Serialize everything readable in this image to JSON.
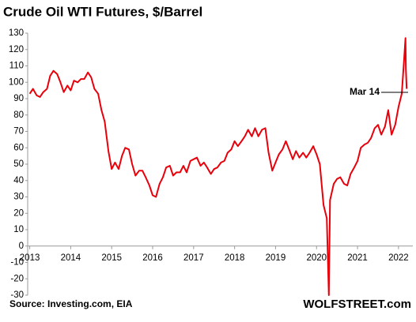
{
  "chart_data": {
    "type": "line",
    "title": "Crude Oil WTI Futures, $/Barrel",
    "annotation": "Mar 14",
    "source": "Source: Investing.com,   EIA",
    "brand": "WOLFSTREET.com",
    "xlim": [
      2012.95,
      2022.35
    ],
    "xticks": [
      2013,
      2014,
      2015,
      2016,
      2017,
      2018,
      2019,
      2020,
      2021,
      2022
    ],
    "ylim": [
      -30,
      130
    ],
    "yticks": [
      -30,
      -20,
      -10,
      0,
      10,
      20,
      30,
      40,
      50,
      60,
      70,
      80,
      90,
      100,
      110,
      120,
      130
    ],
    "grid": false,
    "x": [
      2013.0,
      2013.08,
      2013.17,
      2013.25,
      2013.33,
      2013.42,
      2013.5,
      2013.58,
      2013.67,
      2013.75,
      2013.83,
      2013.92,
      2014.0,
      2014.08,
      2014.17,
      2014.25,
      2014.33,
      2014.42,
      2014.5,
      2014.58,
      2014.67,
      2014.75,
      2014.83,
      2014.92,
      2015.0,
      2015.08,
      2015.17,
      2015.25,
      2015.33,
      2015.42,
      2015.5,
      2015.58,
      2015.67,
      2015.75,
      2015.83,
      2015.92,
      2016.0,
      2016.08,
      2016.17,
      2016.25,
      2016.33,
      2016.42,
      2016.5,
      2016.58,
      2016.67,
      2016.75,
      2016.83,
      2016.92,
      2017.0,
      2017.08,
      2017.17,
      2017.25,
      2017.33,
      2017.42,
      2017.5,
      2017.58,
      2017.67,
      2017.75,
      2017.83,
      2017.92,
      2018.0,
      2018.08,
      2018.17,
      2018.25,
      2018.33,
      2018.42,
      2018.5,
      2018.58,
      2018.67,
      2018.75,
      2018.83,
      2018.92,
      2019.0,
      2019.08,
      2019.17,
      2019.25,
      2019.33,
      2019.42,
      2019.5,
      2019.58,
      2019.67,
      2019.75,
      2019.83,
      2019.92,
      2020.0,
      2020.08,
      2020.17,
      2020.25,
      2020.3,
      2020.33,
      2020.42,
      2020.5,
      2020.58,
      2020.67,
      2020.75,
      2020.83,
      2020.92,
      2021.0,
      2021.08,
      2021.17,
      2021.25,
      2021.33,
      2021.42,
      2021.5,
      2021.58,
      2021.67,
      2021.75,
      2021.83,
      2021.92,
      2022.0,
      2022.08,
      2022.14,
      2022.17,
      2022.18,
      2022.2
    ],
    "series": [
      {
        "name": "WTI",
        "color": "#e8000b",
        "values": [
          93,
          96,
          92,
          91,
          94,
          96,
          104,
          107,
          105,
          100,
          94,
          98,
          95,
          101,
          100,
          102,
          102,
          106,
          103,
          96,
          93,
          83,
          76,
          58,
          47,
          51,
          47,
          55,
          60,
          59,
          50,
          43,
          46,
          46,
          42,
          37,
          31,
          30,
          38,
          42,
          48,
          49,
          43,
          45,
          45,
          49,
          45,
          52,
          53,
          54,
          49,
          51,
          48,
          44,
          47,
          48,
          51,
          52,
          57,
          59,
          64,
          61,
          64,
          67,
          71,
          67,
          72,
          67,
          71,
          72,
          57,
          46,
          51,
          56,
          59,
          64,
          59,
          53,
          58,
          54,
          57,
          54,
          57,
          61,
          56,
          50,
          25,
          17,
          -30,
          28,
          38,
          41,
          42,
          38,
          37,
          44,
          48,
          52,
          60,
          62,
          63,
          66,
          72,
          74,
          68,
          73,
          83,
          68,
          74,
          85,
          93,
          115,
          127,
          108,
          96
        ]
      }
    ]
  }
}
